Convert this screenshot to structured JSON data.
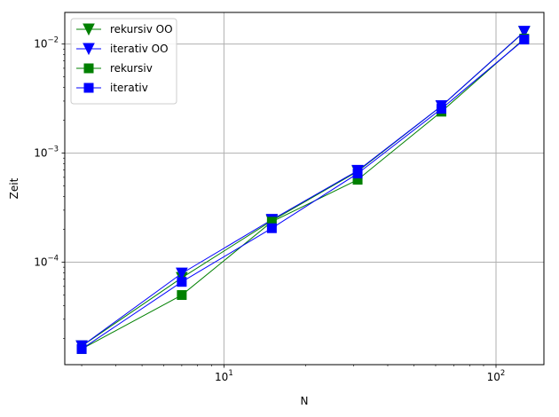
{
  "chart_data": {
    "type": "line",
    "xscale": "log",
    "yscale": "log",
    "xlabel": "N",
    "ylabel": "Zeit",
    "xlim": [
      2.6,
      150
    ],
    "ylim": [
      1.15e-05,
      0.0195
    ],
    "grid": true,
    "legend_position": "top-left",
    "x": [
      3,
      7,
      15,
      31,
      63,
      127
    ],
    "series": [
      {
        "name": "rekursiv OO",
        "marker": "triangle-down",
        "color": "#008000",
        "values": [
          1.7e-05,
          7.2e-05,
          0.00024,
          0.00068,
          0.0027,
          0.0129
        ]
      },
      {
        "name": "iterativ OO",
        "marker": "triangle-down",
        "color": "#0000ff",
        "values": [
          1.7e-05,
          7.9e-05,
          0.000245,
          0.00069,
          0.0027,
          0.013
        ]
      },
      {
        "name": "rekursiv",
        "marker": "square",
        "color": "#008000",
        "values": [
          1.6e-05,
          5e-05,
          0.000235,
          0.00057,
          0.0024,
          0.0112
        ]
      },
      {
        "name": "iterativ",
        "marker": "square",
        "color": "#0000ff",
        "values": [
          1.6e-05,
          6.6e-05,
          0.000205,
          0.00065,
          0.00255,
          0.011
        ]
      }
    ],
    "xticks": [
      {
        "value": 10,
        "base": "10",
        "exp": "1"
      },
      {
        "value": 100,
        "base": "10",
        "exp": "2"
      }
    ],
    "yticks": [
      {
        "value": 0.0001,
        "base": "10",
        "exp": "−4"
      },
      {
        "value": 0.001,
        "base": "10",
        "exp": "−3"
      },
      {
        "value": 0.01,
        "base": "10",
        "exp": "−2"
      }
    ],
    "colors": {
      "grid": "#b0b0b0",
      "axes": "#000000",
      "legend_frame": "#cccccc"
    }
  }
}
